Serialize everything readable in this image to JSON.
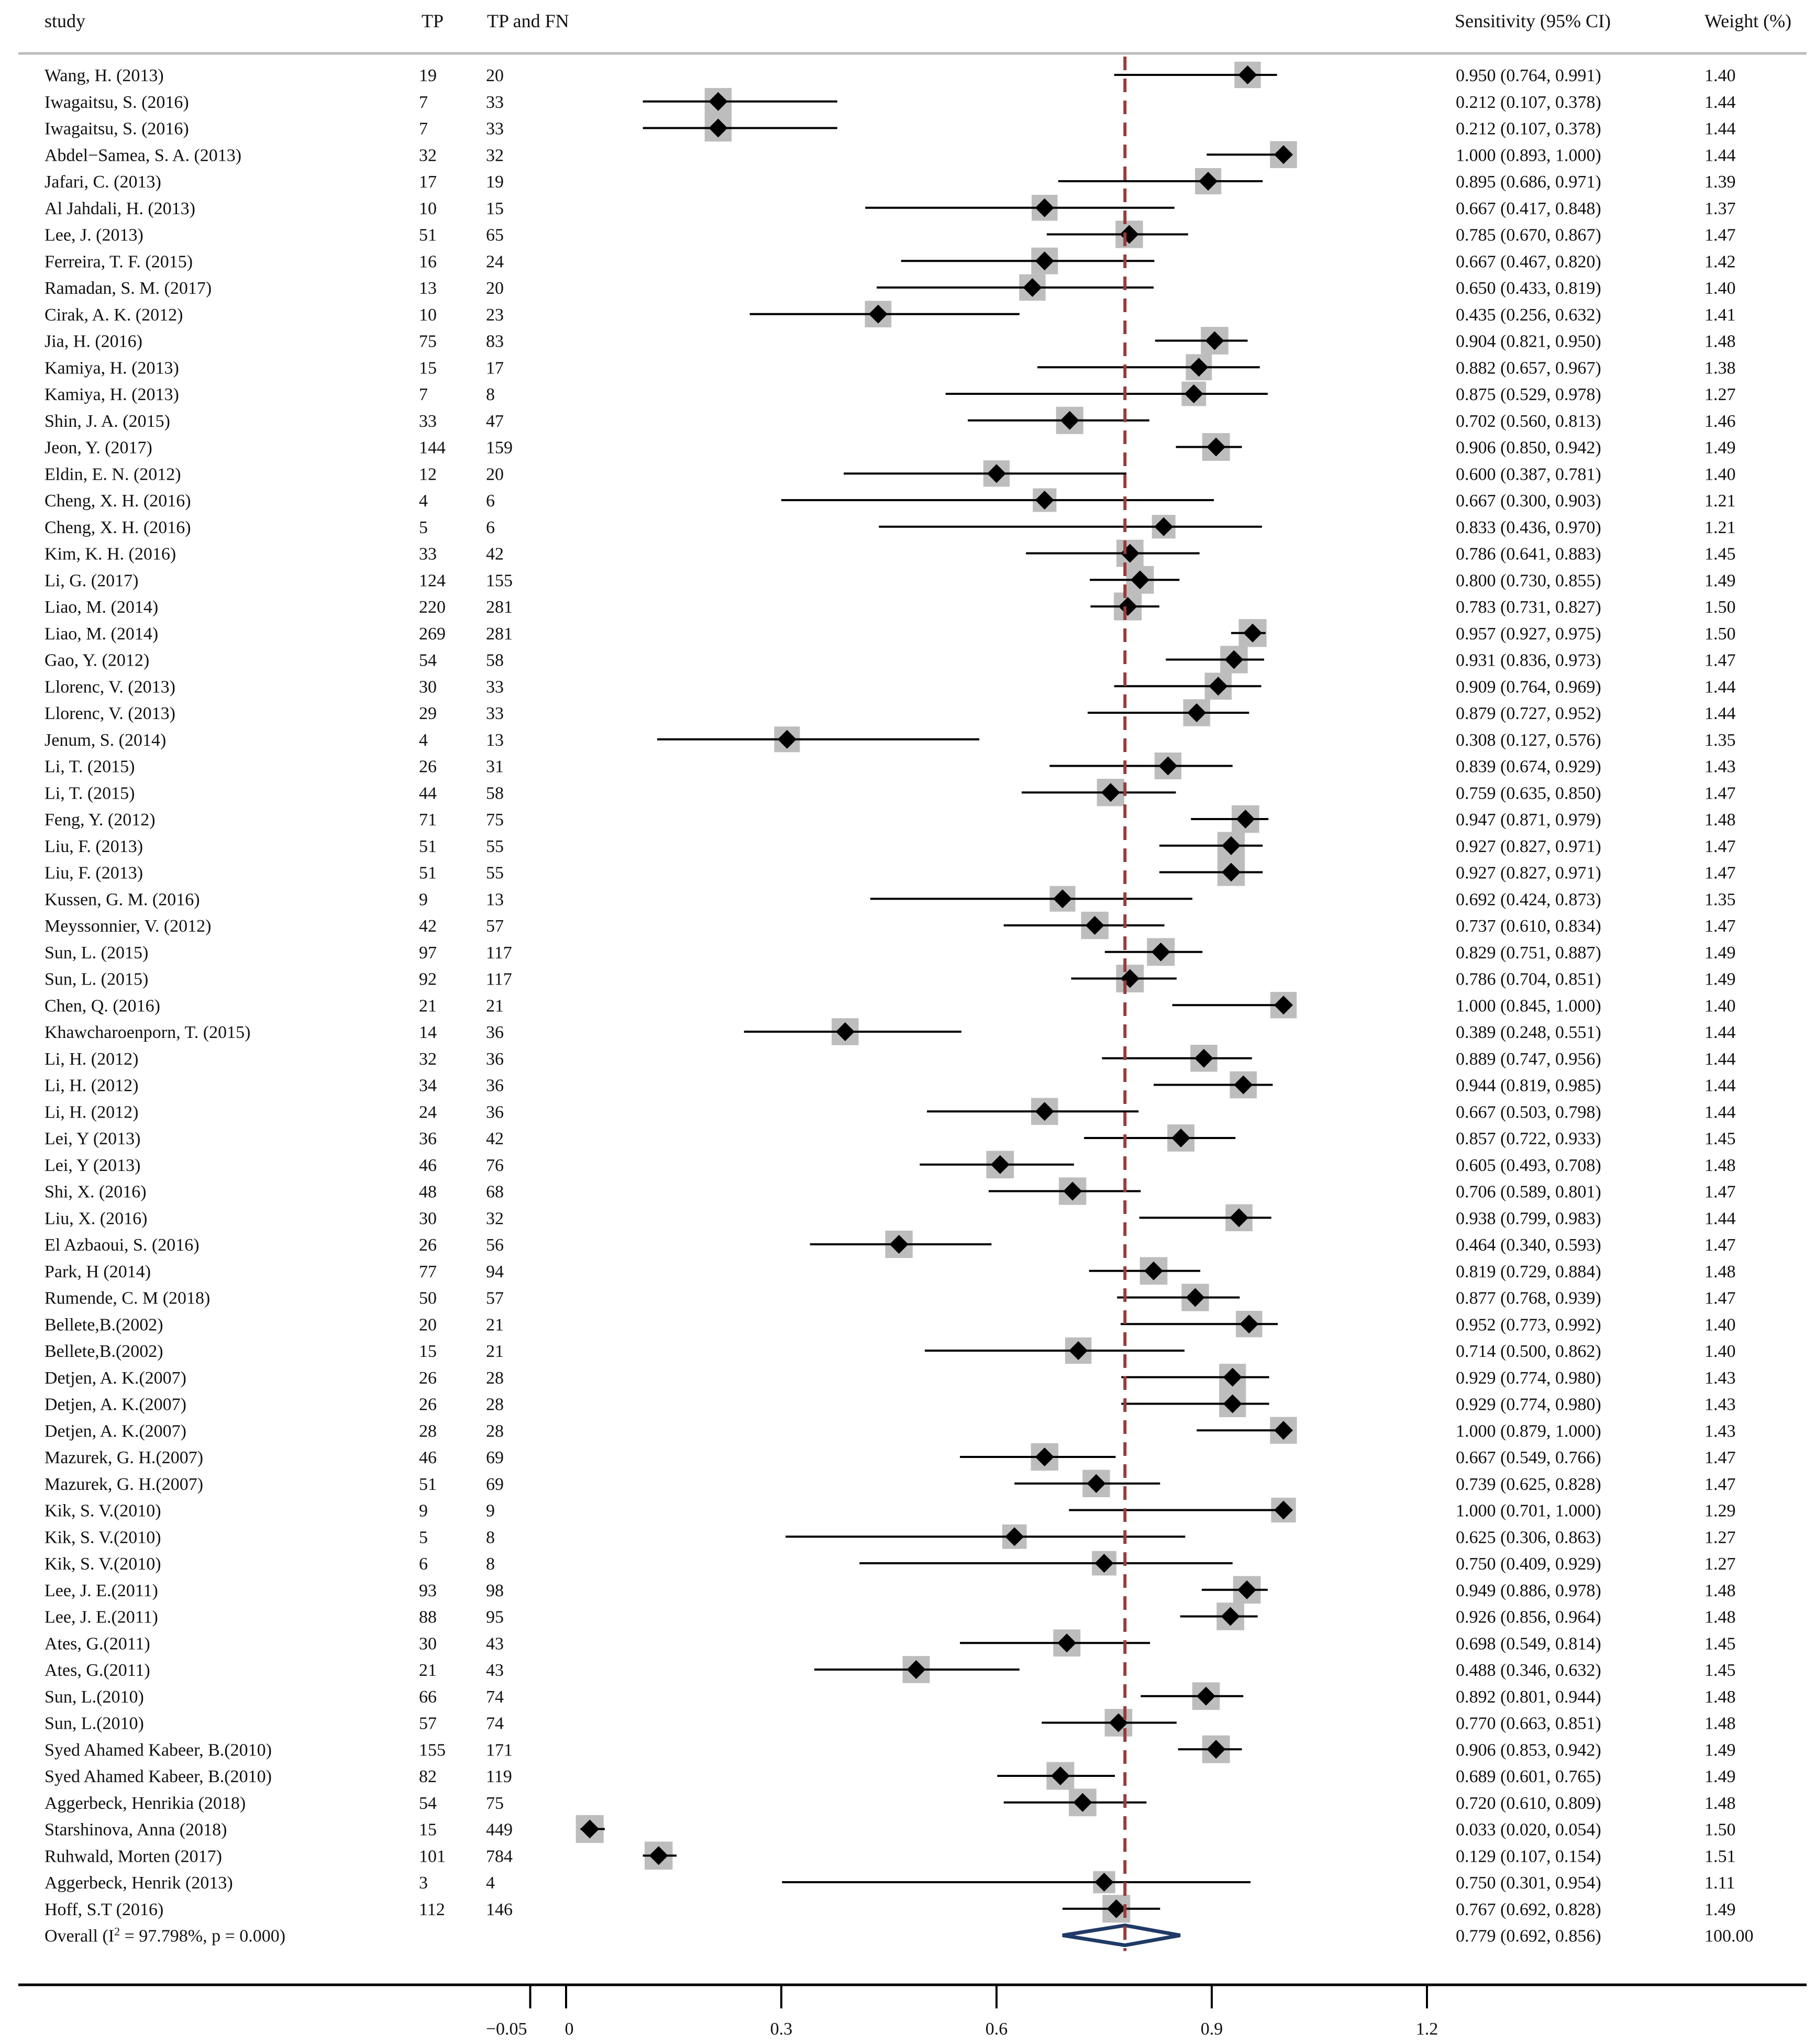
{
  "columns": {
    "study": "study",
    "tp": "TP",
    "tp_fn": "TP and FN",
    "ci": "Sensitivity (95% CI)",
    "weight": "Weight (%)"
  },
  "colors": {
    "line": "#000000",
    "box": "#bdbdbd",
    "reference": "#9b3a3a",
    "overall": "#1f3a66"
  },
  "chart_data": {
    "type": "forest",
    "title": "",
    "xlabel": "",
    "ylabel": "",
    "xlim": [
      -0.05,
      1.2
    ],
    "xticks": [
      -0.05,
      0,
      0.3,
      0.6,
      0.9,
      1.2
    ],
    "xtick_labels": [
      "−0.05",
      "0",
      "0.3",
      "0.6",
      "0.9",
      "1.2"
    ],
    "reference_line": 0.779,
    "studies": [
      {
        "label": "Wang, H. (2013)",
        "tp": "19",
        "tpfn": "20",
        "est": 0.95,
        "lo": 0.764,
        "hi": 0.991,
        "ci_text": "0.950 (0.764, 0.991)",
        "weight": "1.40"
      },
      {
        "label": "Iwagaitsu, S. (2016)",
        "tp": "7",
        "tpfn": "33",
        "est": 0.212,
        "lo": 0.107,
        "hi": 0.378,
        "ci_text": "0.212 (0.107, 0.378)",
        "weight": "1.44"
      },
      {
        "label": "Iwagaitsu, S. (2016)",
        "tp": "7",
        "tpfn": "33",
        "est": 0.212,
        "lo": 0.107,
        "hi": 0.378,
        "ci_text": "0.212 (0.107, 0.378)",
        "weight": "1.44"
      },
      {
        "label": "Abdel−Samea, S. A. (2013)",
        "tp": "32",
        "tpfn": "32",
        "est": 1.0,
        "lo": 0.893,
        "hi": 1.0,
        "ci_text": "1.000 (0.893, 1.000)",
        "weight": "1.44"
      },
      {
        "label": "Jafari, C. (2013)",
        "tp": "17",
        "tpfn": "19",
        "est": 0.895,
        "lo": 0.686,
        "hi": 0.971,
        "ci_text": "0.895 (0.686, 0.971)",
        "weight": "1.39"
      },
      {
        "label": "Al Jahdali, H. (2013)",
        "tp": "10",
        "tpfn": "15",
        "est": 0.667,
        "lo": 0.417,
        "hi": 0.848,
        "ci_text": "0.667 (0.417, 0.848)",
        "weight": "1.37"
      },
      {
        "label": "Lee, J. (2013)",
        "tp": "51",
        "tpfn": "65",
        "est": 0.785,
        "lo": 0.67,
        "hi": 0.867,
        "ci_text": "0.785 (0.670, 0.867)",
        "weight": "1.47"
      },
      {
        "label": "Ferreira, T. F. (2015)",
        "tp": "16",
        "tpfn": "24",
        "est": 0.667,
        "lo": 0.467,
        "hi": 0.82,
        "ci_text": "0.667 (0.467, 0.820)",
        "weight": "1.42"
      },
      {
        "label": "Ramadan, S. M. (2017)",
        "tp": "13",
        "tpfn": "20",
        "est": 0.65,
        "lo": 0.433,
        "hi": 0.819,
        "ci_text": "0.650 (0.433, 0.819)",
        "weight": "1.40"
      },
      {
        "label": "Cirak, A. K. (2012)",
        "tp": "10",
        "tpfn": "23",
        "est": 0.435,
        "lo": 0.256,
        "hi": 0.632,
        "ci_text": "0.435 (0.256, 0.632)",
        "weight": "1.41"
      },
      {
        "label": "Jia, H. (2016)",
        "tp": "75",
        "tpfn": "83",
        "est": 0.904,
        "lo": 0.821,
        "hi": 0.95,
        "ci_text": "0.904 (0.821, 0.950)",
        "weight": "1.48"
      },
      {
        "label": "Kamiya, H. (2013)",
        "tp": "15",
        "tpfn": "17",
        "est": 0.882,
        "lo": 0.657,
        "hi": 0.967,
        "ci_text": "0.882 (0.657, 0.967)",
        "weight": "1.38"
      },
      {
        "label": "Kamiya, H. (2013)",
        "tp": "7",
        "tpfn": "8",
        "est": 0.875,
        "lo": 0.529,
        "hi": 0.978,
        "ci_text": "0.875 (0.529, 0.978)",
        "weight": "1.27"
      },
      {
        "label": "Shin, J. A. (2015)",
        "tp": "33",
        "tpfn": "47",
        "est": 0.702,
        "lo": 0.56,
        "hi": 0.813,
        "ci_text": "0.702 (0.560, 0.813)",
        "weight": "1.46"
      },
      {
        "label": "Jeon, Y. (2017)",
        "tp": "144",
        "tpfn": "159",
        "est": 0.906,
        "lo": 0.85,
        "hi": 0.942,
        "ci_text": "0.906 (0.850, 0.942)",
        "weight": "1.49"
      },
      {
        "label": "Eldin, E. N. (2012)",
        "tp": "12",
        "tpfn": "20",
        "est": 0.6,
        "lo": 0.387,
        "hi": 0.781,
        "ci_text": "0.600 (0.387, 0.781)",
        "weight": "1.40"
      },
      {
        "label": "Cheng, X. H. (2016)",
        "tp": "4",
        "tpfn": "6",
        "est": 0.667,
        "lo": 0.3,
        "hi": 0.903,
        "ci_text": "0.667 (0.300, 0.903)",
        "weight": "1.21"
      },
      {
        "label": "Cheng, X. H. (2016)",
        "tp": "5",
        "tpfn": "6",
        "est": 0.833,
        "lo": 0.436,
        "hi": 0.97,
        "ci_text": "0.833 (0.436, 0.970)",
        "weight": "1.21"
      },
      {
        "label": "Kim, K. H. (2016)",
        "tp": "33",
        "tpfn": "42",
        "est": 0.786,
        "lo": 0.641,
        "hi": 0.883,
        "ci_text": "0.786 (0.641, 0.883)",
        "weight": "1.45"
      },
      {
        "label": "Li, G. (2017)",
        "tp": "124",
        "tpfn": "155",
        "est": 0.8,
        "lo": 0.73,
        "hi": 0.855,
        "ci_text": "0.800 (0.730, 0.855)",
        "weight": "1.49"
      },
      {
        "label": "Liao, M. (2014)",
        "tp": "220",
        "tpfn": "281",
        "est": 0.783,
        "lo": 0.731,
        "hi": 0.827,
        "ci_text": "0.783 (0.731, 0.827)",
        "weight": "1.50"
      },
      {
        "label": "Liao, M. (2014)",
        "tp": "269",
        "tpfn": "281",
        "est": 0.957,
        "lo": 0.927,
        "hi": 0.975,
        "ci_text": "0.957 (0.927, 0.975)",
        "weight": "1.50"
      },
      {
        "label": "Gao, Y. (2012)",
        "tp": "54",
        "tpfn": "58",
        "est": 0.931,
        "lo": 0.836,
        "hi": 0.973,
        "ci_text": "0.931 (0.836, 0.973)",
        "weight": "1.47"
      },
      {
        "label": "Llorenc, V. (2013)",
        "tp": "30",
        "tpfn": "33",
        "est": 0.909,
        "lo": 0.764,
        "hi": 0.969,
        "ci_text": "0.909 (0.764, 0.969)",
        "weight": "1.44"
      },
      {
        "label": "Llorenc, V. (2013)",
        "tp": "29",
        "tpfn": "33",
        "est": 0.879,
        "lo": 0.727,
        "hi": 0.952,
        "ci_text": "0.879 (0.727, 0.952)",
        "weight": "1.44"
      },
      {
        "label": "Jenum, S. (2014)",
        "tp": "4",
        "tpfn": "13",
        "est": 0.308,
        "lo": 0.127,
        "hi": 0.576,
        "ci_text": "0.308 (0.127, 0.576)",
        "weight": "1.35"
      },
      {
        "label": "Li, T. (2015)",
        "tp": "26",
        "tpfn": "31",
        "est": 0.839,
        "lo": 0.674,
        "hi": 0.929,
        "ci_text": "0.839 (0.674, 0.929)",
        "weight": "1.43"
      },
      {
        "label": "Li, T. (2015)",
        "tp": "44",
        "tpfn": "58",
        "est": 0.759,
        "lo": 0.635,
        "hi": 0.85,
        "ci_text": "0.759 (0.635, 0.850)",
        "weight": "1.47"
      },
      {
        "label": "Feng, Y. (2012)",
        "tp": "71",
        "tpfn": "75",
        "est": 0.947,
        "lo": 0.871,
        "hi": 0.979,
        "ci_text": "0.947 (0.871, 0.979)",
        "weight": "1.48"
      },
      {
        "label": "Liu, F. (2013)",
        "tp": "51",
        "tpfn": "55",
        "est": 0.927,
        "lo": 0.827,
        "hi": 0.971,
        "ci_text": "0.927 (0.827, 0.971)",
        "weight": "1.47"
      },
      {
        "label": "Liu, F. (2013)",
        "tp": "51",
        "tpfn": "55",
        "est": 0.927,
        "lo": 0.827,
        "hi": 0.971,
        "ci_text": "0.927 (0.827, 0.971)",
        "weight": "1.47"
      },
      {
        "label": "Kussen, G. M. (2016)",
        "tp": "9",
        "tpfn": "13",
        "est": 0.692,
        "lo": 0.424,
        "hi": 0.873,
        "ci_text": "0.692 (0.424, 0.873)",
        "weight": "1.35"
      },
      {
        "label": "Meyssonnier, V. (2012)",
        "tp": "42",
        "tpfn": "57",
        "est": 0.737,
        "lo": 0.61,
        "hi": 0.834,
        "ci_text": "0.737 (0.610, 0.834)",
        "weight": "1.47"
      },
      {
        "label": "Sun, L. (2015)",
        "tp": "97",
        "tpfn": "117",
        "est": 0.829,
        "lo": 0.751,
        "hi": 0.887,
        "ci_text": "0.829 (0.751, 0.887)",
        "weight": "1.49"
      },
      {
        "label": "Sun, L. (2015)",
        "tp": "92",
        "tpfn": "117",
        "est": 0.786,
        "lo": 0.704,
        "hi": 0.851,
        "ci_text": "0.786 (0.704, 0.851)",
        "weight": "1.49"
      },
      {
        "label": "Chen, Q. (2016)",
        "tp": "21",
        "tpfn": "21",
        "est": 1.0,
        "lo": 0.845,
        "hi": 1.0,
        "ci_text": "1.000 (0.845, 1.000)",
        "weight": "1.40"
      },
      {
        "label": "Khawcharoenporn, T. (2015)",
        "tp": "14",
        "tpfn": "36",
        "est": 0.389,
        "lo": 0.248,
        "hi": 0.551,
        "ci_text": "0.389 (0.248, 0.551)",
        "weight": "1.44"
      },
      {
        "label": "Li, H. (2012)",
        "tp": "32",
        "tpfn": "36",
        "est": 0.889,
        "lo": 0.747,
        "hi": 0.956,
        "ci_text": "0.889 (0.747, 0.956)",
        "weight": "1.44"
      },
      {
        "label": "Li, H. (2012)",
        "tp": "34",
        "tpfn": "36",
        "est": 0.944,
        "lo": 0.819,
        "hi": 0.985,
        "ci_text": "0.944 (0.819, 0.985)",
        "weight": "1.44"
      },
      {
        "label": "Li, H. (2012)",
        "tp": "24",
        "tpfn": "36",
        "est": 0.667,
        "lo": 0.503,
        "hi": 0.798,
        "ci_text": "0.667 (0.503, 0.798)",
        "weight": "1.44"
      },
      {
        "label": "Lei, Y (2013)",
        "tp": "36",
        "tpfn": "42",
        "est": 0.857,
        "lo": 0.722,
        "hi": 0.933,
        "ci_text": "0.857 (0.722, 0.933)",
        "weight": "1.45"
      },
      {
        "label": "Lei, Y (2013)",
        "tp": "46",
        "tpfn": "76",
        "est": 0.605,
        "lo": 0.493,
        "hi": 0.708,
        "ci_text": "0.605 (0.493, 0.708)",
        "weight": "1.48"
      },
      {
        "label": "Shi, X. (2016)",
        "tp": "48",
        "tpfn": "68",
        "est": 0.706,
        "lo": 0.589,
        "hi": 0.801,
        "ci_text": "0.706 (0.589, 0.801)",
        "weight": "1.47"
      },
      {
        "label": "Liu, X. (2016)",
        "tp": "30",
        "tpfn": "32",
        "est": 0.938,
        "lo": 0.799,
        "hi": 0.983,
        "ci_text": "0.938 (0.799, 0.983)",
        "weight": "1.44"
      },
      {
        "label": "El Azbaoui, S. (2016)",
        "tp": "26",
        "tpfn": "56",
        "est": 0.464,
        "lo": 0.34,
        "hi": 0.593,
        "ci_text": "0.464 (0.340, 0.593)",
        "weight": "1.47"
      },
      {
        "label": "Park, H (2014)",
        "tp": "77",
        "tpfn": "94",
        "est": 0.819,
        "lo": 0.729,
        "hi": 0.884,
        "ci_text": "0.819 (0.729, 0.884)",
        "weight": "1.48"
      },
      {
        "label": "Rumende, C. M (2018)",
        "tp": "50",
        "tpfn": "57",
        "est": 0.877,
        "lo": 0.768,
        "hi": 0.939,
        "ci_text": "0.877 (0.768, 0.939)",
        "weight": "1.47"
      },
      {
        "label": "Bellete,B.(2002)",
        "tp": "20",
        "tpfn": "21",
        "est": 0.952,
        "lo": 0.773,
        "hi": 0.992,
        "ci_text": "0.952 (0.773, 0.992)",
        "weight": "1.40"
      },
      {
        "label": "Bellete,B.(2002)",
        "tp": "15",
        "tpfn": "21",
        "est": 0.714,
        "lo": 0.5,
        "hi": 0.862,
        "ci_text": "0.714 (0.500, 0.862)",
        "weight": "1.40"
      },
      {
        "label": "Detjen, A. K.(2007)",
        "tp": "26",
        "tpfn": "28",
        "est": 0.929,
        "lo": 0.774,
        "hi": 0.98,
        "ci_text": "0.929 (0.774, 0.980)",
        "weight": "1.43"
      },
      {
        "label": "Detjen, A. K.(2007)",
        "tp": "26",
        "tpfn": "28",
        "est": 0.929,
        "lo": 0.774,
        "hi": 0.98,
        "ci_text": "0.929 (0.774, 0.980)",
        "weight": "1.43"
      },
      {
        "label": "Detjen, A. K.(2007)",
        "tp": "28",
        "tpfn": "28",
        "est": 1.0,
        "lo": 0.879,
        "hi": 1.0,
        "ci_text": "1.000 (0.879, 1.000)",
        "weight": "1.43"
      },
      {
        "label": "Mazurek, G. H.(2007)",
        "tp": "46",
        "tpfn": "69",
        "est": 0.667,
        "lo": 0.549,
        "hi": 0.766,
        "ci_text": "0.667 (0.549, 0.766)",
        "weight": "1.47"
      },
      {
        "label": "Mazurek, G. H.(2007)",
        "tp": "51",
        "tpfn": "69",
        "est": 0.739,
        "lo": 0.625,
        "hi": 0.828,
        "ci_text": "0.739 (0.625, 0.828)",
        "weight": "1.47"
      },
      {
        "label": "Kik, S. V.(2010)",
        "tp": "9",
        "tpfn": "9",
        "est": 1.0,
        "lo": 0.701,
        "hi": 1.0,
        "ci_text": "1.000 (0.701, 1.000)",
        "weight": "1.29"
      },
      {
        "label": "Kik, S. V.(2010)",
        "tp": "5",
        "tpfn": "8",
        "est": 0.625,
        "lo": 0.306,
        "hi": 0.863,
        "ci_text": "0.625 (0.306, 0.863)",
        "weight": "1.27"
      },
      {
        "label": "Kik, S. V.(2010)",
        "tp": "6",
        "tpfn": "8",
        "est": 0.75,
        "lo": 0.409,
        "hi": 0.929,
        "ci_text": "0.750 (0.409, 0.929)",
        "weight": "1.27"
      },
      {
        "label": "Lee, J. E.(2011)",
        "tp": "93",
        "tpfn": "98",
        "est": 0.949,
        "lo": 0.886,
        "hi": 0.978,
        "ci_text": "0.949 (0.886, 0.978)",
        "weight": "1.48"
      },
      {
        "label": "Lee, J. E.(2011)",
        "tp": "88",
        "tpfn": "95",
        "est": 0.926,
        "lo": 0.856,
        "hi": 0.964,
        "ci_text": "0.926 (0.856, 0.964)",
        "weight": "1.48"
      },
      {
        "label": "Ates, G.(2011)",
        "tp": "30",
        "tpfn": "43",
        "est": 0.698,
        "lo": 0.549,
        "hi": 0.814,
        "ci_text": "0.698 (0.549, 0.814)",
        "weight": "1.45"
      },
      {
        "label": "Ates, G.(2011)",
        "tp": "21",
        "tpfn": "43",
        "est": 0.488,
        "lo": 0.346,
        "hi": 0.632,
        "ci_text": "0.488 (0.346, 0.632)",
        "weight": "1.45"
      },
      {
        "label": "Sun, L.(2010)",
        "tp": "66",
        "tpfn": "74",
        "est": 0.892,
        "lo": 0.801,
        "hi": 0.944,
        "ci_text": "0.892 (0.801, 0.944)",
        "weight": "1.48"
      },
      {
        "label": "Sun, L.(2010)",
        "tp": "57",
        "tpfn": "74",
        "est": 0.77,
        "lo": 0.663,
        "hi": 0.851,
        "ci_text": "0.770 (0.663, 0.851)",
        "weight": "1.48"
      },
      {
        "label": "Syed Ahamed Kabeer, B.(2010)",
        "tp": "155",
        "tpfn": "171",
        "est": 0.906,
        "lo": 0.853,
        "hi": 0.942,
        "ci_text": "0.906 (0.853, 0.942)",
        "weight": "1.49"
      },
      {
        "label": "Syed Ahamed Kabeer, B.(2010)",
        "tp": "82",
        "tpfn": "119",
        "est": 0.689,
        "lo": 0.601,
        "hi": 0.765,
        "ci_text": "0.689 (0.601, 0.765)",
        "weight": "1.49"
      },
      {
        "label": "Aggerbeck, Henrikia (2018)",
        "tp": "54",
        "tpfn": "75",
        "est": 0.72,
        "lo": 0.61,
        "hi": 0.809,
        "ci_text": "0.720 (0.610, 0.809)",
        "weight": "1.48"
      },
      {
        "label": "Starshinova, Anna (2018)",
        "tp": "15",
        "tpfn": "449",
        "est": 0.033,
        "lo": 0.02,
        "hi": 0.054,
        "ci_text": "0.033 (0.020, 0.054)",
        "weight": "1.50"
      },
      {
        "label": "Ruhwald, Morten (2017)",
        "tp": "101",
        "tpfn": "784",
        "est": 0.129,
        "lo": 0.107,
        "hi": 0.154,
        "ci_text": "0.129 (0.107, 0.154)",
        "weight": "1.51"
      },
      {
        "label": "Aggerbeck, Henrik (2013)",
        "tp": "3",
        "tpfn": "4",
        "est": 0.75,
        "lo": 0.301,
        "hi": 0.954,
        "ci_text": "0.750 (0.301, 0.954)",
        "weight": "1.11"
      },
      {
        "label": "Hoff, S.T (2016)",
        "tp": "112",
        "tpfn": "146",
        "est": 0.767,
        "lo": 0.692,
        "hi": 0.828,
        "ci_text": "0.767 (0.692, 0.828)",
        "weight": "1.49"
      }
    ],
    "overall": {
      "label_prefix": "Overall  (I",
      "label_sup": "2",
      "label_suffix": " = 97.798%, p = 0.000)",
      "est": 0.779,
      "lo": 0.692,
      "hi": 0.856,
      "ci_text": "0.779 (0.692, 0.856)",
      "weight": "100.00"
    }
  }
}
